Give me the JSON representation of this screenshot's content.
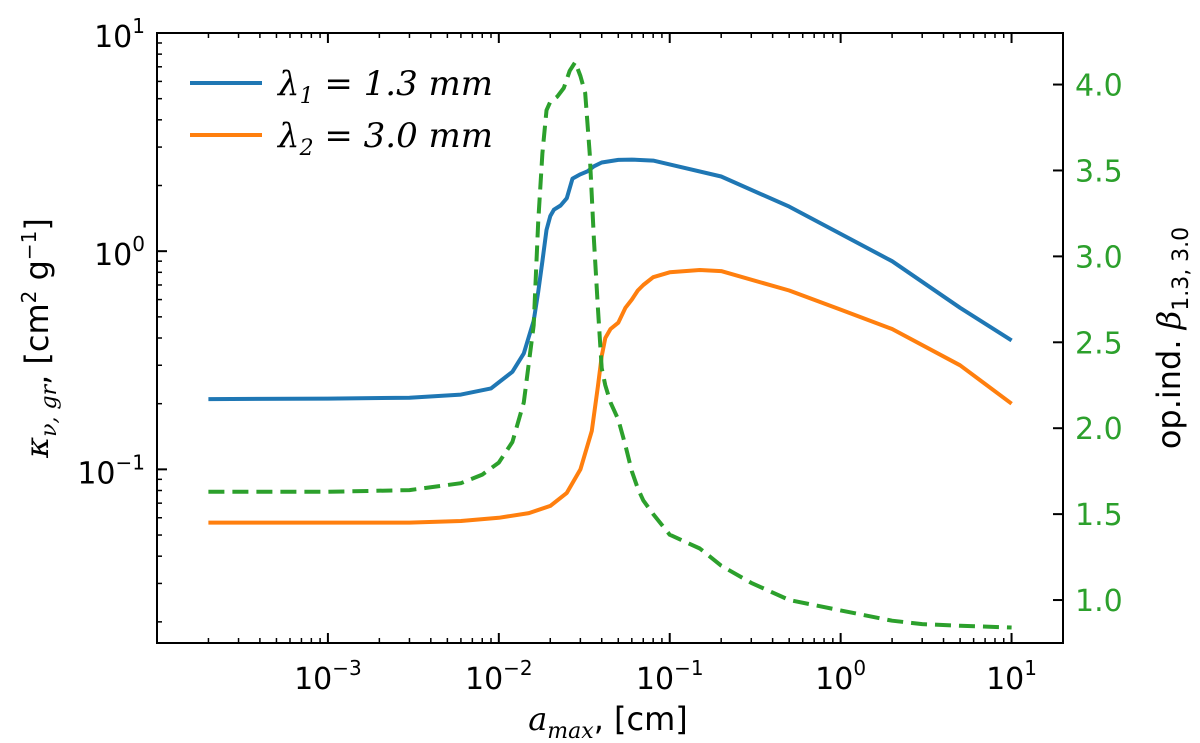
{
  "chart_data": {
    "type": "line",
    "x_axis": {
      "label": "a_max, [cm]",
      "label_parts": {
        "symbol": "a",
        "subscript": "max",
        "unit": ", [cm]"
      },
      "scale": "log",
      "range": [
        0.0001,
        20
      ],
      "ticks": [
        {
          "value": 0.001,
          "base": "10",
          "exp": "−3"
        },
        {
          "value": 0.01,
          "base": "10",
          "exp": "−2"
        },
        {
          "value": 0.1,
          "base": "10",
          "exp": "−1"
        },
        {
          "value": 1,
          "base": "10",
          "exp": "0"
        },
        {
          "value": 10,
          "base": "10",
          "exp": "1"
        }
      ]
    },
    "y_left_axis": {
      "label": "κ_ν,gr, [cm² g⁻¹]",
      "label_parts": {
        "symbol": "κ",
        "subscript": "ν, gr",
        "unit_open": ", [cm",
        "sup1": "2",
        "mid": " g",
        "sup2": "−1",
        "close": "]"
      },
      "scale": "log",
      "range": [
        0.016,
        10
      ],
      "ticks": [
        {
          "value": 0.1,
          "base": "10",
          "exp": "−1"
        },
        {
          "value": 1,
          "base": "10",
          "exp": "0"
        },
        {
          "value": 10,
          "base": "10",
          "exp": "1"
        }
      ]
    },
    "y_right_axis": {
      "label": "op.ind. β_1.3,3.0",
      "label_parts": {
        "prefix": "op.ind. ",
        "symbol": "β",
        "subscript": "1.3, 3.0"
      },
      "scale": "linear",
      "range": [
        0.75,
        4.3
      ],
      "color": "#2ca02c",
      "ticks": [
        "1.0",
        "1.5",
        "2.0",
        "2.5",
        "3.0",
        "3.5",
        "4.0"
      ]
    },
    "legend": {
      "location": "top-left",
      "entries": [
        {
          "symbol": "λ",
          "sub": "1",
          "text": " = 1.3 ",
          "unit": "mm",
          "color": "#1f77b4"
        },
        {
          "symbol": "λ",
          "sub": "2",
          "text": " = 3.0 ",
          "unit": "mm",
          "color": "#ff7f0e"
        }
      ]
    },
    "series": [
      {
        "name": "λ1 = 1.3 mm",
        "axis": "left",
        "color": "#1f77b4",
        "dash": "solid",
        "x": [
          0.0002,
          0.001,
          0.003,
          0.006,
          0.009,
          0.012,
          0.014,
          0.016,
          0.017,
          0.018,
          0.019,
          0.02,
          0.021,
          0.023,
          0.025,
          0.027,
          0.03,
          0.033,
          0.036,
          0.04,
          0.05,
          0.06,
          0.08,
          0.1,
          0.2,
          0.5,
          1,
          2,
          5,
          10
        ],
        "values": [
          0.21,
          0.211,
          0.213,
          0.22,
          0.235,
          0.28,
          0.34,
          0.48,
          0.65,
          0.9,
          1.25,
          1.45,
          1.55,
          1.62,
          1.75,
          2.15,
          2.25,
          2.32,
          2.45,
          2.55,
          2.62,
          2.63,
          2.6,
          2.5,
          2.2,
          1.6,
          1.2,
          0.9,
          0.55,
          0.39
        ]
      },
      {
        "name": "λ2 = 3.0 mm",
        "axis": "left",
        "color": "#ff7f0e",
        "dash": "solid",
        "x": [
          0.0002,
          0.001,
          0.003,
          0.006,
          0.01,
          0.015,
          0.02,
          0.025,
          0.03,
          0.035,
          0.038,
          0.04,
          0.042,
          0.045,
          0.05,
          0.055,
          0.06,
          0.065,
          0.07,
          0.08,
          0.1,
          0.15,
          0.2,
          0.5,
          1,
          2,
          5,
          10
        ],
        "values": [
          0.057,
          0.057,
          0.057,
          0.058,
          0.06,
          0.063,
          0.068,
          0.078,
          0.1,
          0.15,
          0.24,
          0.33,
          0.4,
          0.44,
          0.47,
          0.55,
          0.6,
          0.66,
          0.7,
          0.76,
          0.8,
          0.82,
          0.81,
          0.66,
          0.54,
          0.44,
          0.3,
          0.2
        ]
      },
      {
        "name": "op.ind. β1.3,3.0",
        "axis": "right",
        "color": "#2ca02c",
        "dash": "dashed",
        "x": [
          0.0002,
          0.001,
          0.003,
          0.006,
          0.008,
          0.01,
          0.012,
          0.014,
          0.016,
          0.017,
          0.018,
          0.019,
          0.02,
          0.022,
          0.024,
          0.026,
          0.028,
          0.03,
          0.032,
          0.034,
          0.036,
          0.038,
          0.04,
          0.042,
          0.045,
          0.05,
          0.055,
          0.06,
          0.065,
          0.07,
          0.08,
          0.1,
          0.15,
          0.2,
          0.3,
          0.5,
          1,
          2,
          3,
          5,
          10
        ],
        "values": [
          1.63,
          1.63,
          1.64,
          1.68,
          1.73,
          1.8,
          1.92,
          2.15,
          2.6,
          3.2,
          3.6,
          3.85,
          3.9,
          3.93,
          3.98,
          4.08,
          4.13,
          4.05,
          3.95,
          3.6,
          3.1,
          2.7,
          2.35,
          2.25,
          2.15,
          2.05,
          1.9,
          1.75,
          1.65,
          1.58,
          1.5,
          1.38,
          1.3,
          1.2,
          1.1,
          1.0,
          0.94,
          0.88,
          0.86,
          0.85,
          0.84
        ]
      }
    ]
  }
}
